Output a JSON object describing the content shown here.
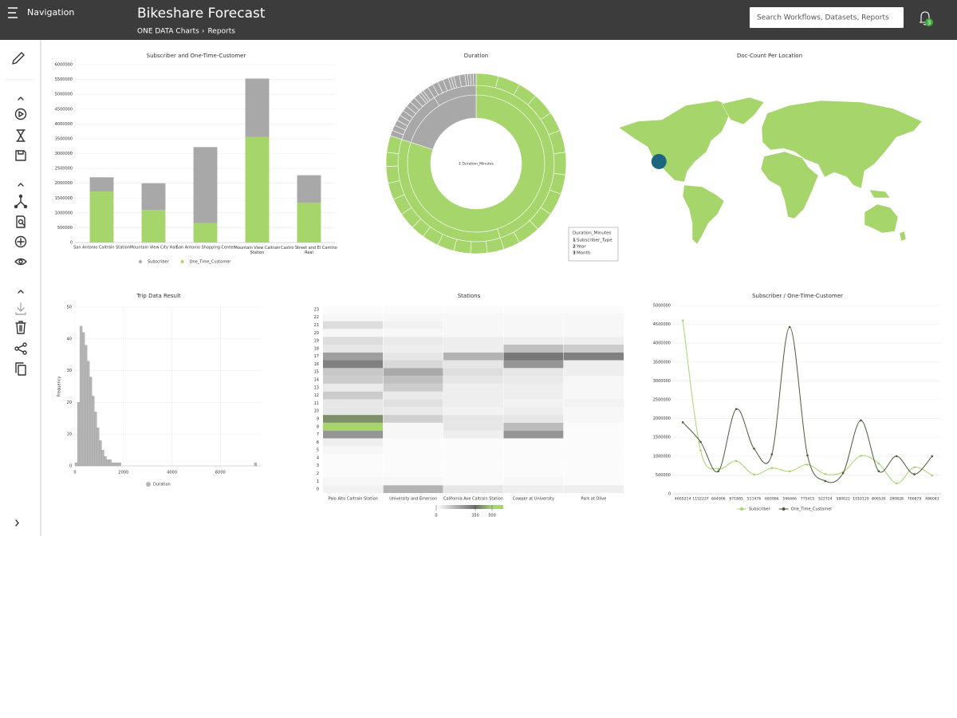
{
  "header": {
    "nav_label": "Navigation",
    "title": "Bikeshare Forecast",
    "breadcrumb": [
      "ONE DATA Charts",
      "Reports"
    ],
    "breadcrumb_separator": "›",
    "search_placeholder": "Search Workflows, Datasets, Reports",
    "notification_count": 3
  },
  "chart_data": [
    {
      "type": "stacked_bar",
      "title": "Subscriber and One-Time-Customer",
      "categories": [
        "San Antonio Caltrain Station",
        "Mountain View City Hall",
        "San Antonio Shopping Center",
        "Mountain View Caltrain Station",
        "Castro Street and El Camino Real"
      ],
      "series": [
        {
          "name": "Subscriber",
          "color": "#a8a8a8",
          "values": [
            480000,
            900000,
            2560000,
            1970000,
            930000
          ]
        },
        {
          "name": "One_Time_Customer",
          "color": "#a6d56b",
          "values": [
            1720000,
            1100000,
            660000,
            3560000,
            1340000
          ]
        }
      ],
      "ylim": [
        0,
        6000000
      ],
      "yticks": [
        0,
        500000,
        1000000,
        1500000,
        2000000,
        2500000,
        3000000,
        3500000,
        4000000,
        4500000,
        5000000,
        5500000,
        6000000
      ],
      "grid": true,
      "legend": "bottom"
    },
    {
      "type": "sunburst",
      "title": "Duration",
      "center_label": "Σ Duration_Minutes",
      "legend_title": "Duration_Minutes",
      "levels": [
        {
          "number": 1,
          "name": "Subscriber_Type"
        },
        {
          "number": 2,
          "name": "Year"
        },
        {
          "number": 3,
          "name": "Month"
        }
      ],
      "rings": [
        {
          "values": [
            80,
            20
          ],
          "colors": [
            "#a6d56b",
            "#a8a8a8"
          ]
        },
        {
          "values": [
            45,
            35,
            11,
            9
          ],
          "colors": [
            "#a6d56b",
            "#a6d56b",
            "#a8a8a8",
            "#a8a8a8"
          ]
        },
        {
          "values": [
            4,
            4,
            3.5,
            4,
            3.5,
            4,
            4,
            3.5,
            4,
            3.5,
            4,
            3,
            3,
            3,
            3,
            3,
            3,
            2.5,
            3,
            3,
            3,
            3,
            2.5,
            3,
            1,
            1,
            1,
            1,
            1,
            1,
            1,
            1,
            1,
            0.5,
            0.5,
            1,
            1,
            1,
            1,
            1,
            0.5,
            0.5,
            1,
            1,
            0.5,
            0.5,
            0.5,
            0.5
          ],
          "colors": [
            "#a6d56b",
            "#a6d56b",
            "#a6d56b",
            "#a6d56b",
            "#a6d56b",
            "#a6d56b",
            "#a6d56b",
            "#a6d56b",
            "#a6d56b",
            "#a6d56b",
            "#a6d56b",
            "#a6d56b",
            "#a6d56b",
            "#a6d56b",
            "#a6d56b",
            "#a6d56b",
            "#a6d56b",
            "#a6d56b",
            "#a6d56b",
            "#a6d56b",
            "#a6d56b",
            "#a6d56b",
            "#a6d56b",
            "#a6d56b",
            "#a8a8a8",
            "#a8a8a8",
            "#a8a8a8",
            "#a8a8a8",
            "#a8a8a8",
            "#a8a8a8",
            "#a8a8a8",
            "#a8a8a8",
            "#a8a8a8",
            "#a8a8a8",
            "#a8a8a8",
            "#a8a8a8",
            "#a8a8a8",
            "#a8a8a8",
            "#a8a8a8",
            "#a8a8a8",
            "#a8a8a8",
            "#a8a8a8",
            "#a8a8a8",
            "#a8a8a8",
            "#a8a8a8",
            "#a8a8a8",
            "#a8a8a8",
            "#a8a8a8"
          ]
        }
      ]
    },
    {
      "type": "map",
      "title": "Doc-Count Per Location",
      "land_color": "#a6d56b",
      "points": [
        {
          "lon": -122.1,
          "lat": 37.4,
          "color": "#1b6680"
        }
      ]
    },
    {
      "type": "histogram",
      "title": "Trip Data Result",
      "ylabel": "Frequency",
      "series_name": "Duration",
      "color": "#b5b5b5",
      "bins": [
        0,
        100,
        200,
        300,
        400,
        500,
        600,
        700,
        800,
        900,
        1000,
        1100,
        1200,
        1300,
        1400,
        1500,
        1600,
        1700,
        1800,
        1900,
        2000,
        2100,
        2200,
        2300,
        2400,
        2500,
        2600,
        2700,
        2800,
        2900,
        3000,
        3100,
        3200,
        3300,
        3400,
        3500,
        3600,
        3700,
        3800,
        3900,
        4000,
        4100,
        4200,
        4300,
        4400,
        4500,
        4600,
        4700,
        4800,
        4900,
        5000,
        5100,
        5200,
        5300,
        5400,
        5500,
        5600,
        5700,
        5800,
        5900,
        6000,
        6100,
        6200,
        6300,
        6400,
        6500,
        6600,
        6700,
        6800,
        6900,
        7000,
        7100,
        7200,
        7300,
        7400,
        7500,
        7600
      ],
      "counts": [
        1,
        20,
        44,
        42,
        38,
        33,
        28,
        22,
        17,
        12,
        8,
        5,
        3,
        2,
        2,
        1,
        1,
        1,
        1,
        0,
        0,
        0,
        0,
        0,
        0,
        0,
        0,
        0,
        0,
        0,
        0,
        0,
        0,
        0,
        0,
        0,
        0,
        0,
        0,
        0,
        0,
        0,
        0,
        0,
        0,
        0,
        0,
        0,
        0,
        0,
        0,
        0,
        0,
        0,
        0,
        0,
        0,
        0,
        0,
        0,
        0,
        0,
        0,
        0,
        0,
        0,
        0,
        0,
        0,
        0,
        0,
        0,
        0,
        0,
        1,
        0
      ],
      "xlim": [
        0,
        7700
      ],
      "ylim": [
        0,
        50
      ],
      "xticks": [
        0,
        2000,
        4000,
        6000
      ],
      "yticks": [
        0,
        10,
        20,
        30,
        40,
        50
      ],
      "grid": true
    },
    {
      "type": "heatmap",
      "title": "Stations",
      "categories": [
        "Palo Alto Caltrain Station",
        "University and Emerson",
        "California Ave Caltrain Station",
        "Cowper at University",
        "Park at Olive"
      ],
      "hours": [
        0,
        1,
        2,
        3,
        4,
        5,
        6,
        7,
        8,
        9,
        10,
        11,
        12,
        13,
        14,
        15,
        16,
        17,
        18,
        19,
        20,
        21,
        22,
        23
      ],
      "values": [
        [
          30,
          20,
          10,
          10,
          10,
          20,
          40,
          250,
          550,
          400,
          60,
          60,
          120,
          50,
          120,
          130,
          300,
          230,
          60,
          80,
          20,
          80,
          20,
          10
        ],
        [
          180,
          20,
          10,
          10,
          10,
          10,
          10,
          20,
          20,
          110,
          50,
          70,
          50,
          120,
          150,
          200,
          90,
          60,
          40,
          50,
          20,
          30,
          20,
          10
        ],
        [
          60,
          10,
          10,
          10,
          10,
          10,
          10,
          40,
          60,
          60,
          30,
          40,
          40,
          40,
          60,
          80,
          60,
          180,
          40,
          40,
          20,
          20,
          20,
          10
        ],
        [
          40,
          20,
          10,
          10,
          10,
          10,
          10,
          250,
          160,
          60,
          40,
          30,
          40,
          40,
          50,
          60,
          250,
          320,
          150,
          40,
          20,
          20,
          20,
          10
        ],
        [
          40,
          10,
          10,
          10,
          10,
          10,
          10,
          10,
          10,
          20,
          20,
          30,
          20,
          20,
          20,
          40,
          40,
          300,
          120,
          40,
          20,
          20,
          20,
          10
        ]
      ],
      "color_stops": [
        {
          "value": 0,
          "color": "#ffffff"
        },
        {
          "value": 350,
          "color": "#6b6b6b"
        },
        {
          "value": 500,
          "color": "#a6d56b"
        }
      ],
      "zlim": [
        0,
        600
      ]
    },
    {
      "type": "line",
      "title": "Subscriber / One-Time-Customer",
      "categories": [
        "4605214",
        "1152237",
        "664906",
        "871885",
        "511476",
        "683966",
        "596466",
        "775415",
        "522724",
        "580022",
        "1010129",
        "806530",
        "280828",
        "706879",
        "486043"
      ],
      "series": [
        {
          "name": "Subscriber",
          "color": "#a6d56b",
          "values": [
            4605214,
            1152237,
            664906,
            871885,
            511476,
            683966,
            596466,
            775415,
            522724,
            580022,
            1010129,
            806530,
            280828,
            706879,
            486043
          ]
        },
        {
          "name": "One_Time_Customer",
          "color": "#4d5a3a",
          "values": [
            1900000,
            1380000,
            600000,
            2250000,
            1200000,
            1050000,
            4430000,
            1020000,
            340000,
            550000,
            1950000,
            600000,
            1000000,
            520000,
            1000000
          ]
        }
      ],
      "ylim": [
        0,
        5000000
      ],
      "yticks": [
        0,
        500000,
        1000000,
        1500000,
        2000000,
        2500000,
        3000000,
        3500000,
        4000000,
        4500000,
        5000000
      ],
      "grid": true,
      "smooth": true,
      "legend": "bottom"
    }
  ]
}
